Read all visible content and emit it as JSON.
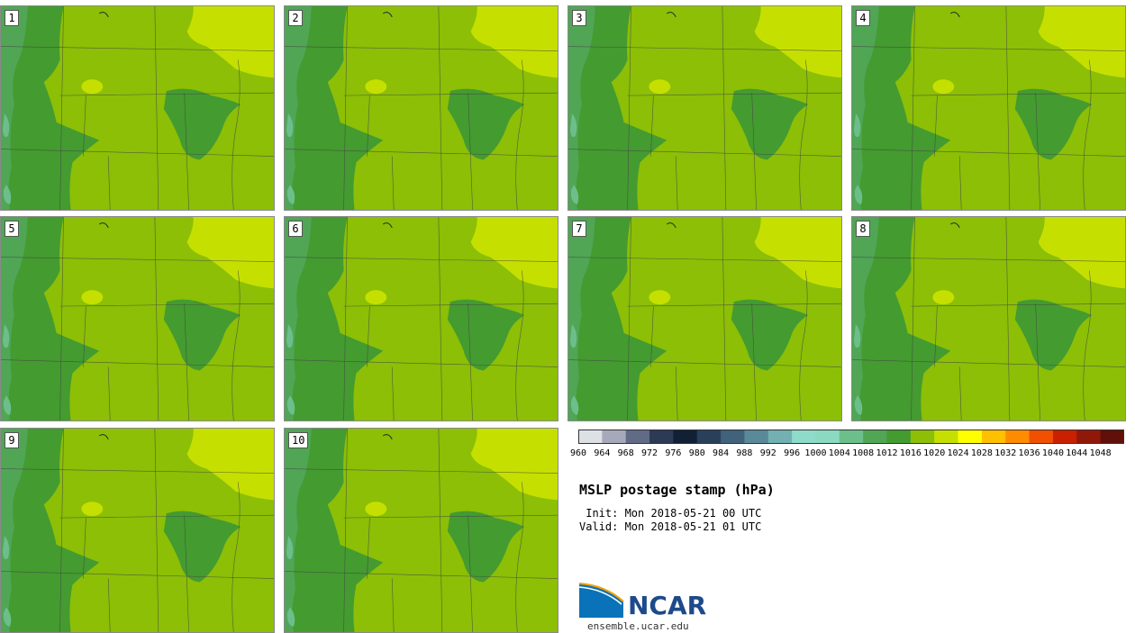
{
  "stamps": [
    {
      "label": "1"
    },
    {
      "label": "2"
    },
    {
      "label": "3"
    },
    {
      "label": "4"
    },
    {
      "label": "5"
    },
    {
      "label": "6"
    },
    {
      "label": "7"
    },
    {
      "label": "8"
    },
    {
      "label": "9"
    },
    {
      "label": "10"
    }
  ],
  "colorbar": {
    "ticks": [
      "960",
      "964",
      "968",
      "972",
      "976",
      "980",
      "984",
      "988",
      "992",
      "996",
      "1000",
      "1004",
      "1008",
      "1012",
      "1016",
      "1020",
      "1024",
      "1028",
      "1032",
      "1036",
      "1040",
      "1044",
      "1048"
    ],
    "colors": [
      "#dde1e6",
      "#a6a9ba",
      "#626b86",
      "#2c3a56",
      "#122036",
      "#2a3f5a",
      "#40627a",
      "#5a8a99",
      "#72b0b2",
      "#8edbc9",
      "#8ad9c0",
      "#6cbf8a",
      "#50a655",
      "#449b30",
      "#8cbf06",
      "#c5e000",
      "#ffff00",
      "#ffc000",
      "#ff8c00",
      "#f05000",
      "#c82000",
      "#901808",
      "#601008"
    ]
  },
  "title": "MSLP postage stamp (hPa)",
  "init": " Init: Mon 2018-05-21 00 UTC",
  "valid": "Valid: Mon 2018-05-21 01 UTC",
  "logo_text": "NCAR",
  "url": "ensemble.ucar.edu"
}
